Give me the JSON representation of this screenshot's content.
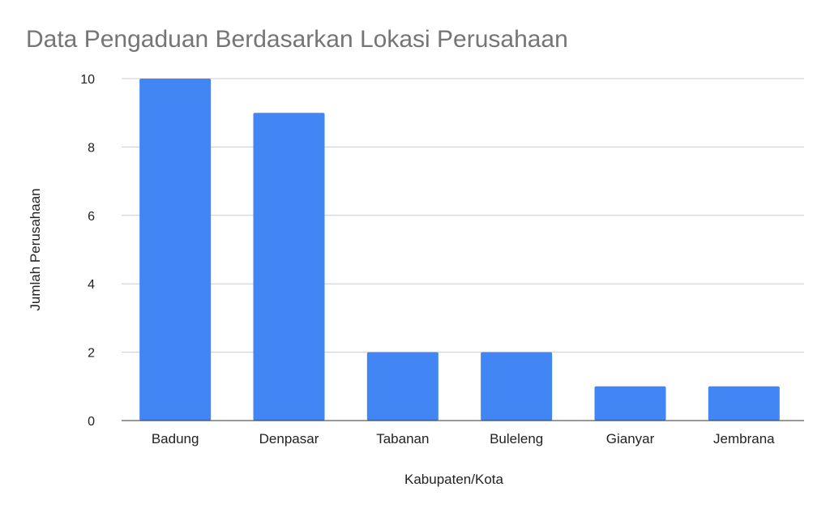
{
  "chart_data": {
    "type": "bar",
    "title": "Data Pengaduan Berdasarkan Lokasi Perusahaan",
    "xlabel": "Kabupaten/Kota",
    "ylabel": "Jumlah Perusahaan",
    "categories": [
      "Badung",
      "Denpasar",
      "Tabanan",
      "Buleleng",
      "Gianyar",
      "Jembrana"
    ],
    "values": [
      10,
      9,
      2,
      2,
      1,
      1
    ],
    "ylim": [
      0,
      10
    ],
    "yticks": [
      0,
      2,
      4,
      6,
      8,
      10
    ],
    "grid": true,
    "legend": "none",
    "colors": {
      "bar": "#4285f4",
      "title": "#757575",
      "text": "#222222",
      "grid": "#cccccc",
      "axis": "#333333"
    }
  }
}
